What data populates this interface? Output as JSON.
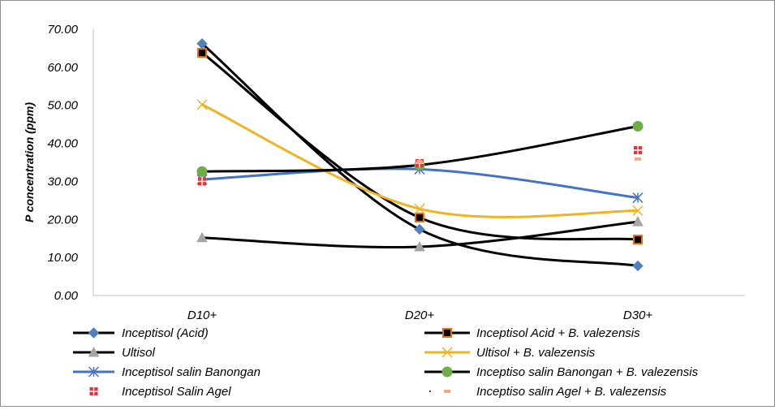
{
  "chart_data": {
    "type": "line",
    "title": "",
    "xlabel": "",
    "ylabel": "P concentration (ppm)",
    "categories": [
      "D10+",
      "D20+",
      "D30+"
    ],
    "ylim": [
      0,
      70
    ],
    "yticks": [
      "0.00",
      "10.00",
      "20.00",
      "30.00",
      "40.00",
      "50.00",
      "60.00",
      "70.00"
    ],
    "ytick_values": [
      0,
      10,
      20,
      30,
      40,
      50,
      60,
      70
    ],
    "grid": false,
    "legend_position": "bottom",
    "series": [
      {
        "name": "Inceptisol (Acid)",
        "values": [
          66.2,
          17.4,
          7.8
        ],
        "line_color": "#000000",
        "marker": "diamond",
        "marker_fill": "#4f81bd",
        "marker_stroke": "#4f81bd",
        "smooth": true,
        "has_line": true
      },
      {
        "name": "Inceptisol Acid + B. valezensis",
        "values": [
          63.8,
          20.5,
          14.7
        ],
        "line_color": "#000000",
        "marker": "square",
        "marker_fill": "#000000",
        "marker_stroke": "#e46c0a",
        "smooth": true,
        "has_line": true
      },
      {
        "name": "Ultisol",
        "values": [
          15.2,
          12.8,
          19.4
        ],
        "line_color": "#000000",
        "marker": "triangle",
        "marker_fill": "#a5a5a5",
        "marker_stroke": "#a5a5a5",
        "smooth": true,
        "has_line": true
      },
      {
        "name": "Ultisol + B. valezensis",
        "values": [
          50.2,
          22.8,
          22.3
        ],
        "line_color": "#f0b323",
        "marker": "x",
        "marker_fill": "none",
        "marker_stroke": "#f0b323",
        "smooth": true,
        "has_line": true
      },
      {
        "name": "Inceptisol salin Banongan",
        "values": [
          30.5,
          33.2,
          25.7
        ],
        "line_color": "#4472c4",
        "marker": "asterisk",
        "marker_fill": "none",
        "marker_stroke": "#4472c4",
        "smooth": true,
        "has_line": true
      },
      {
        "name": "Inceptiso salin Banongan + B. valezensis",
        "values": [
          32.6,
          34.3,
          44.5
        ],
        "line_color": "#000000",
        "marker": "circle",
        "marker_fill": "#70ad47",
        "marker_stroke": "#70ad47",
        "smooth": true,
        "has_line": true
      },
      {
        "name": "Inceptisol Salin Agel",
        "values": [
          30.0,
          34.8,
          38.2
        ],
        "line_color": "none",
        "marker": "square-cross",
        "marker_fill": "#e8303a",
        "marker_stroke": "#e8303a",
        "smooth": false,
        "has_line": false
      },
      {
        "name": "Inceptiso salin Agel + B. valezensis",
        "values": [
          null,
          35.2,
          35.9
        ],
        "line_color": "none",
        "marker": "dash",
        "marker_fill": "#f4a582",
        "marker_stroke": "#f4a582",
        "smooth": false,
        "has_line": false
      }
    ]
  }
}
